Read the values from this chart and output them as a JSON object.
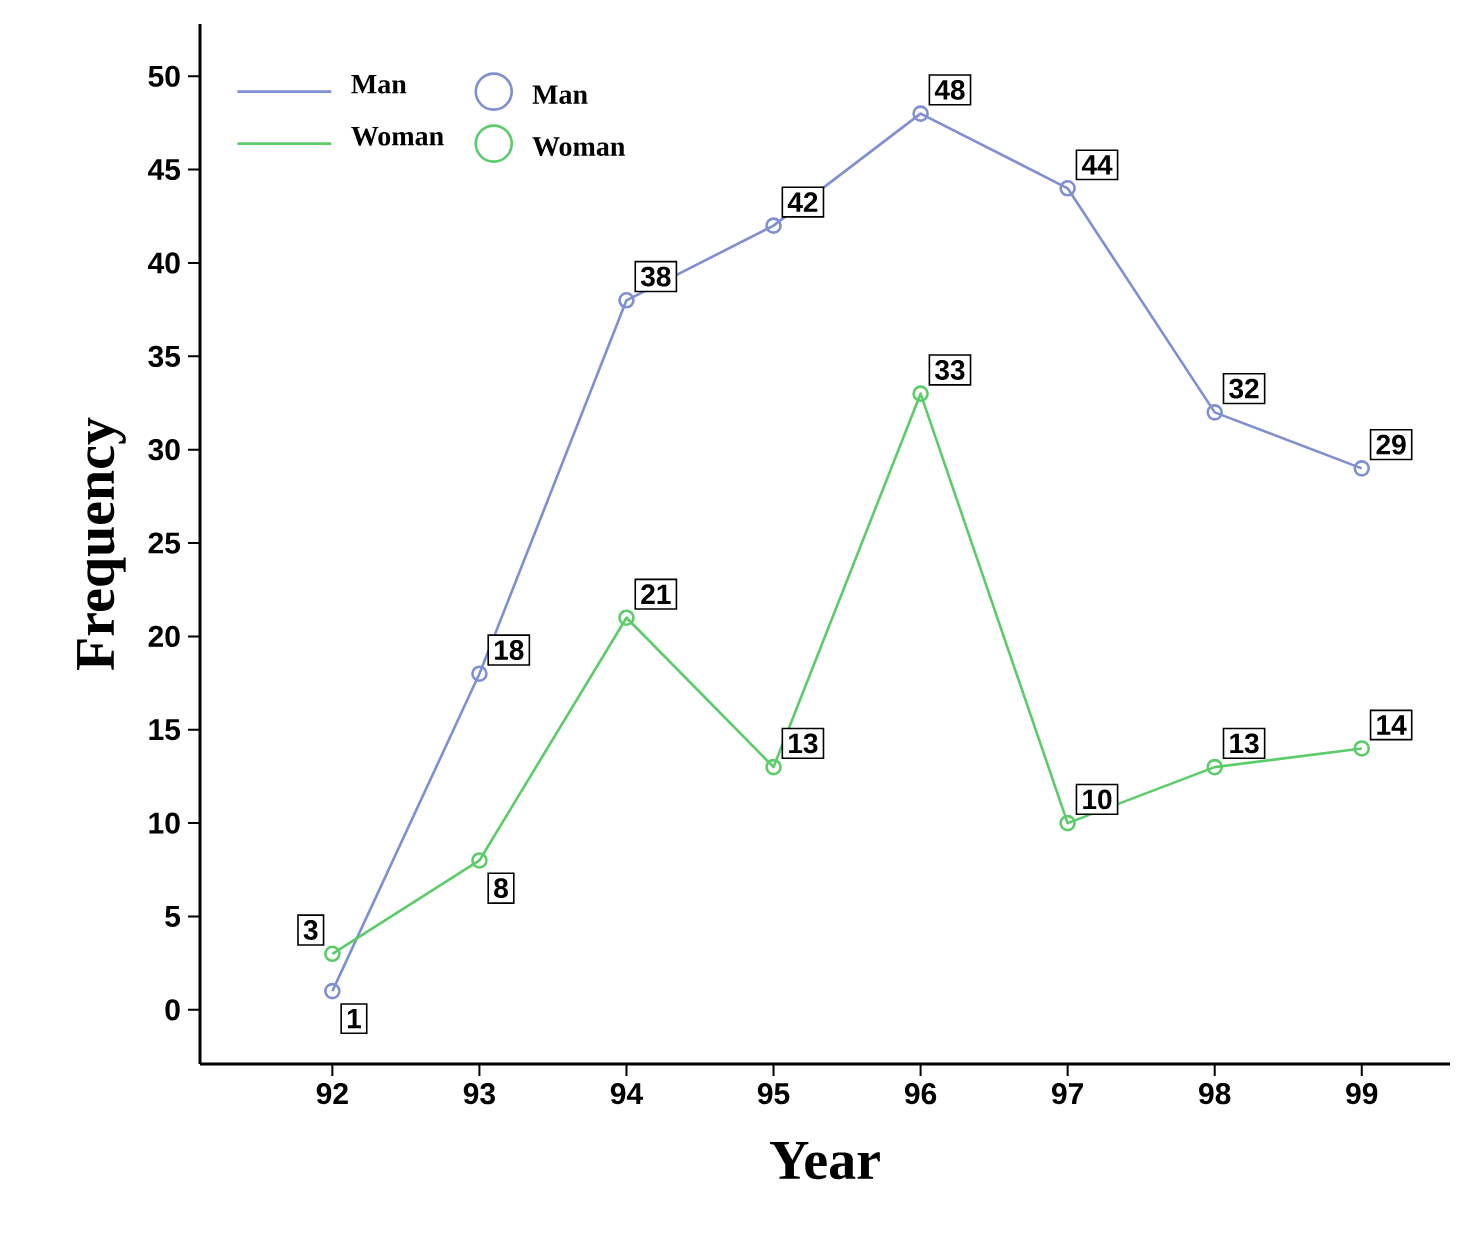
{
  "chart_data": {
    "type": "line",
    "xlabel": "Year",
    "ylabel": "Frequency",
    "x": [
      92,
      93,
      94,
      95,
      96,
      97,
      98,
      99
    ],
    "series": [
      {
        "name": "Man",
        "color": "#7f8fd3",
        "values": [
          1,
          18,
          38,
          42,
          48,
          44,
          32,
          29
        ]
      },
      {
        "name": "Woman",
        "color": "#5ccc6a",
        "values": [
          3,
          8,
          21,
          13,
          33,
          10,
          13,
          14
        ]
      }
    ],
    "xlim": [
      91.1,
      99.6
    ],
    "ylim": [
      -2.9,
      52.8
    ],
    "xticks": [
      92,
      93,
      94,
      95,
      96,
      97,
      98,
      99
    ],
    "yticks": [
      0,
      5,
      10,
      15,
      20,
      25,
      30,
      35,
      40,
      45,
      50
    ],
    "marker": "circle",
    "line_style": "solid",
    "legend": "top left",
    "data_labels": true,
    "grid": false
  }
}
